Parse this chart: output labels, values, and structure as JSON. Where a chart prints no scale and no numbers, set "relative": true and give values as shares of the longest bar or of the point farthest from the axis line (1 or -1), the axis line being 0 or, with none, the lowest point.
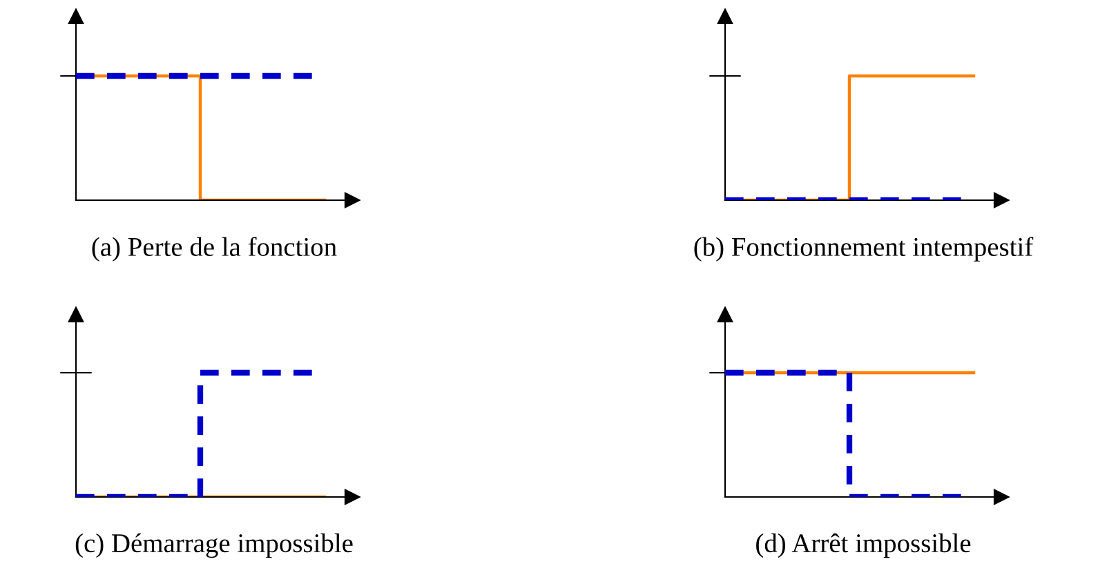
{
  "chart_data": [
    {
      "type": "step",
      "relative": true,
      "categories": [
        null,
        null,
        null
      ],
      "line_style": "solid",
      "annotations": [
        "(a) Perte de la fonction"
      ],
      "series": [
        {
          "color": "#ff8000",
          "values": [
            1,
            0,
            0
          ]
        },
        {
          "color": "#0000cc",
          "values": [
            1,
            1,
            1
          ],
          "line_style": "dashed"
        }
      ]
    },
    {
      "type": "step",
      "relative": true,
      "categories": [
        null,
        null,
        null
      ],
      "line_style": "solid",
      "annotations": [
        "(b) Fonctionnement intempestif"
      ],
      "series": [
        {
          "color": "#ff8000",
          "values": [
            0,
            1,
            1
          ]
        },
        {
          "color": "#0000cc",
          "values": [
            0,
            0,
            0
          ],
          "line_style": "dashed"
        }
      ]
    },
    {
      "type": "step",
      "relative": true,
      "categories": [
        null,
        null,
        null
      ],
      "line_style": "solid",
      "annotations": [
        "(c) Démarrage impossible"
      ],
      "series": [
        {
          "color": "#ff8000",
          "values": [
            0,
            0,
            0
          ]
        },
        {
          "color": "#0000cc",
          "values": [
            0,
            1,
            1
          ],
          "line_style": "dashed"
        }
      ]
    },
    {
      "type": "step",
      "relative": true,
      "categories": [
        null,
        null,
        null
      ],
      "line_style": "solid",
      "annotations": [
        "(d) Arrêt impossible"
      ],
      "series": [
        {
          "color": "#ff8000",
          "values": [
            1,
            1,
            1
          ]
        },
        {
          "color": "#0000cc",
          "values": [
            1,
            0,
            0
          ],
          "line_style": "dashed"
        }
      ]
    }
  ]
}
